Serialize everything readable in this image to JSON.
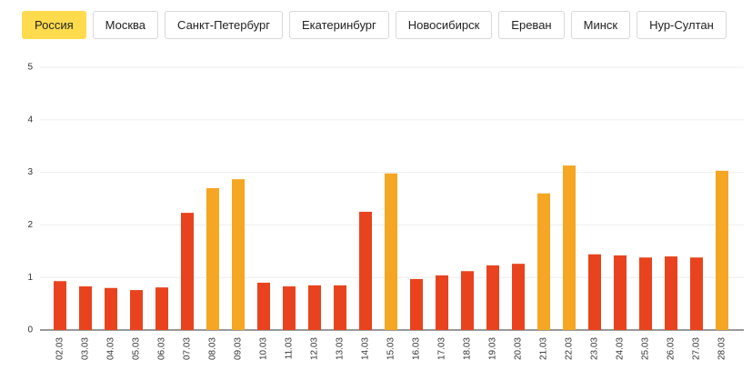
{
  "tabs": [
    "Россия",
    "Москва",
    "Санкт-Петербург",
    "Екатеринбург",
    "Новосибирск",
    "Ереван",
    "Минск",
    "Нур-Султан"
  ],
  "selected_tab": 0,
  "chart_data": {
    "type": "bar",
    "categories": [
      "02.03",
      "03.03",
      "04.03",
      "05.03",
      "06.03",
      "07.03",
      "08.03",
      "09.03",
      "10.03",
      "11.03",
      "12.03",
      "13.03",
      "14.03",
      "15.03",
      "16.03",
      "17.03",
      "18.03",
      "19.03",
      "20.03",
      "21.03",
      "22.03",
      "23.03",
      "24.03",
      "25.03",
      "26.03",
      "27.03",
      "28.03"
    ],
    "values": [
      0.93,
      0.83,
      0.8,
      0.76,
      0.81,
      2.23,
      2.7,
      2.87,
      0.9,
      0.83,
      0.85,
      0.85,
      2.25,
      2.98,
      0.97,
      1.04,
      1.12,
      1.23,
      1.26,
      2.6,
      3.13,
      1.44,
      1.42,
      1.38,
      1.4,
      1.38,
      3.03
    ],
    "colors": [
      "#e8431e",
      "#e8431e",
      "#e8431e",
      "#e8431e",
      "#e8431e",
      "#e8431e",
      "#f5a623",
      "#f5a623",
      "#e8431e",
      "#e8431e",
      "#e8431e",
      "#e8431e",
      "#e8431e",
      "#f5a623",
      "#e8431e",
      "#e8431e",
      "#e8431e",
      "#e8431e",
      "#e8431e",
      "#f5a623",
      "#f5a623",
      "#e8431e",
      "#e8431e",
      "#e8431e",
      "#e8431e",
      "#e8431e",
      "#f5a623"
    ],
    "ylim": [
      0,
      5
    ],
    "yticks": [
      0,
      1,
      2,
      3,
      4,
      5
    ],
    "grid": true
  }
}
